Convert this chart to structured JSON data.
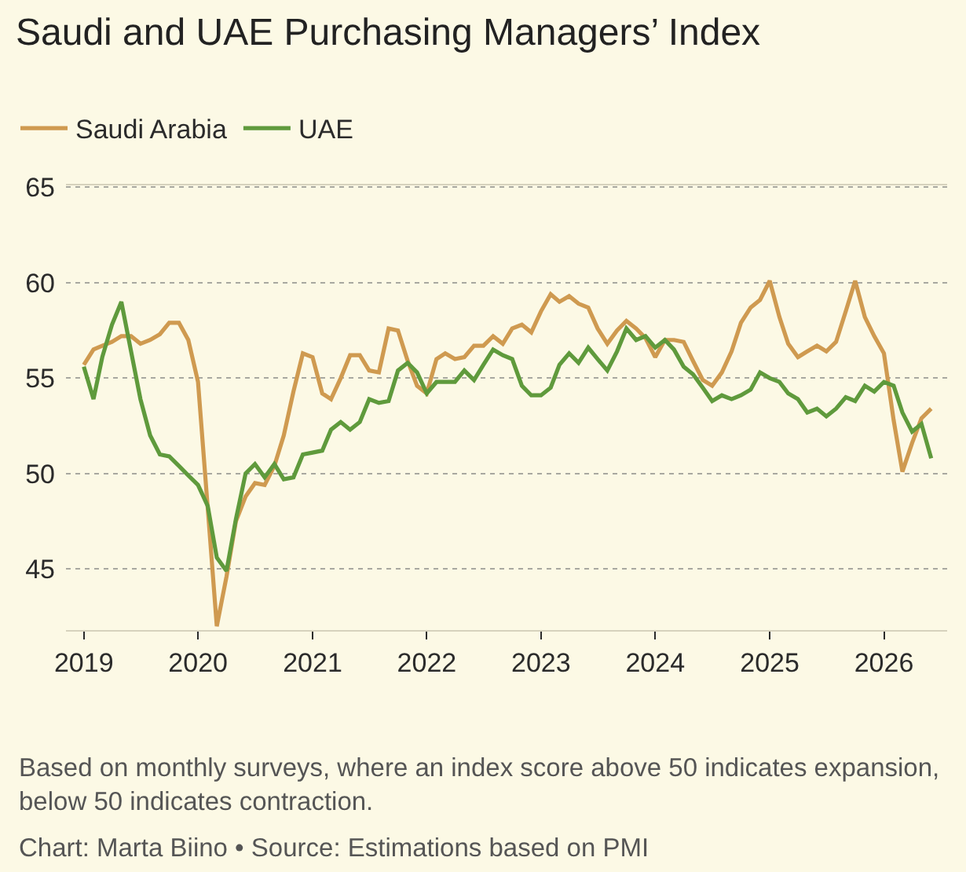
{
  "chart_data": {
    "type": "line",
    "title": "Saudi and UAE Purchasing Managers’ Index",
    "x": [
      "2019-01",
      "2019-02",
      "2019-03",
      "2019-04",
      "2019-05",
      "2019-06",
      "2019-07",
      "2019-08",
      "2019-09",
      "2019-10",
      "2019-11",
      "2019-12",
      "2020-01",
      "2020-02",
      "2020-03",
      "2020-04",
      "2020-05",
      "2020-06",
      "2020-07",
      "2020-08",
      "2020-09",
      "2020-10",
      "2020-11",
      "2020-12",
      "2021-01",
      "2021-02",
      "2021-03",
      "2021-04",
      "2021-05",
      "2021-06",
      "2021-07",
      "2021-08",
      "2021-09",
      "2021-10",
      "2021-11",
      "2021-12",
      "2022-01",
      "2022-02",
      "2022-03",
      "2022-04",
      "2022-05",
      "2022-06",
      "2022-07",
      "2022-08",
      "2022-09",
      "2022-10",
      "2022-11",
      "2022-12",
      "2023-01",
      "2023-02",
      "2023-03",
      "2023-04",
      "2023-05",
      "2023-06",
      "2023-07",
      "2023-08",
      "2023-09",
      "2023-10",
      "2023-11",
      "2023-12",
      "2024-01",
      "2024-02",
      "2024-03",
      "2024-04",
      "2024-05",
      "2024-06",
      "2024-07",
      "2024-08",
      "2024-09",
      "2024-10",
      "2024-11",
      "2024-12",
      "2025-01",
      "2025-02",
      "2025-03",
      "2025-04",
      "2025-05",
      "2025-06",
      "2025-07",
      "2025-08",
      "2025-09",
      "2025-10",
      "2025-11",
      "2025-12",
      "2026-01",
      "2026-02",
      "2026-03",
      "2026-04",
      "2026-05",
      "2026-06"
    ],
    "series": [
      {
        "name": "Saudi Arabia",
        "color": "#cf9a50",
        "values": [
          55.7,
          56.5,
          56.7,
          56.9,
          57.2,
          57.2,
          56.8,
          57.0,
          57.3,
          57.9,
          57.9,
          57.0,
          54.8,
          48.2,
          42.0,
          44.6,
          47.5,
          48.8,
          49.5,
          49.4,
          50.4,
          52.0,
          54.3,
          56.3,
          56.1,
          54.2,
          53.9,
          55.0,
          56.2,
          56.2,
          55.4,
          55.3,
          57.6,
          57.5,
          55.9,
          54.6,
          54.2,
          56.0,
          56.3,
          56.0,
          56.1,
          56.7,
          56.7,
          57.2,
          56.8,
          57.6,
          57.8,
          57.4,
          58.5,
          59.4,
          59.0,
          59.3,
          58.9,
          58.7,
          57.6,
          56.8,
          57.5,
          58.0,
          57.6,
          57.1,
          56.1,
          57.0,
          57.0,
          56.9,
          55.9,
          54.9,
          54.6,
          55.3,
          56.4,
          57.9,
          58.7,
          59.1,
          60.1,
          58.2,
          56.8,
          56.1,
          56.4,
          56.7,
          56.4,
          56.9,
          58.5,
          60.1,
          58.2,
          57.2,
          56.3,
          52.8,
          50.1,
          51.6,
          52.9,
          53.4
        ]
      },
      {
        "name": "UAE",
        "color": "#5f9a3c",
        "values": [
          55.6,
          53.9,
          56.1,
          57.8,
          59.0,
          56.4,
          53.9,
          52.0,
          51.0,
          50.9,
          50.4,
          49.9,
          49.4,
          48.3,
          45.6,
          44.9,
          47.6,
          50.0,
          50.5,
          49.8,
          50.5,
          49.7,
          49.8,
          51.0,
          51.1,
          51.2,
          52.3,
          52.7,
          52.3,
          52.7,
          53.9,
          53.7,
          53.8,
          55.4,
          55.8,
          55.3,
          54.2,
          54.8,
          54.8,
          54.8,
          55.4,
          54.9,
          55.7,
          56.5,
          56.2,
          56.0,
          54.6,
          54.1,
          54.1,
          54.5,
          55.7,
          56.3,
          55.8,
          56.6,
          56.0,
          55.4,
          56.4,
          57.6,
          57.0,
          57.2,
          56.6,
          57.0,
          56.5,
          55.6,
          55.2,
          54.5,
          53.8,
          54.1,
          53.9,
          54.1,
          54.4,
          55.3,
          55.0,
          54.8,
          54.2,
          53.9,
          53.2,
          53.4,
          53.0,
          53.4,
          54.0,
          53.8,
          54.6,
          54.3,
          54.8,
          54.6,
          53.2,
          52.2,
          52.6,
          50.8
        ]
      }
    ],
    "xlim": [
      "2018-11-05",
      "2026-07-22"
    ],
    "xticks": [
      "2019",
      "2020",
      "2021",
      "2022",
      "2023",
      "2024",
      "2025",
      "2026"
    ],
    "ylim": [
      41.8,
      65.1
    ],
    "yticks": [
      45,
      50,
      55,
      60,
      65
    ],
    "grid": "y",
    "legend": "top left",
    "annotations": [
      "Based on monthly surveys, where an index score above 50 indicates expansion, below 50 indicates contraction.",
      "Chart: Marta Biino • Source: Estimations based on PMI"
    ]
  }
}
